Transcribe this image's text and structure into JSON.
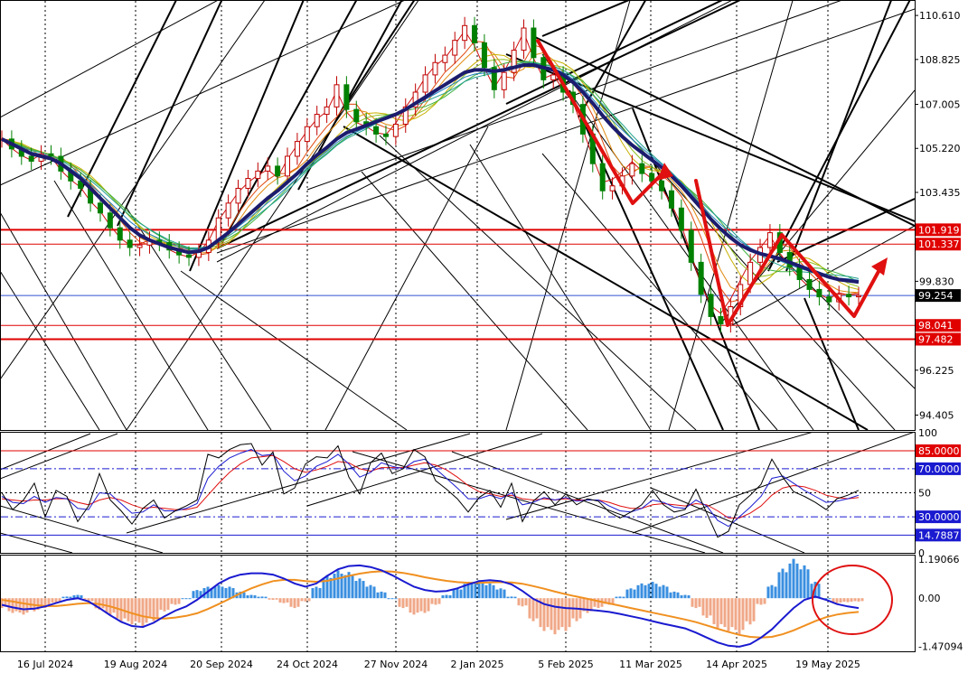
{
  "chart_data": {
    "type": "line",
    "x_labels": [
      "16 Jul 2024",
      "19 Aug 2024",
      "20 Sep 2024",
      "24 Oct 2024",
      "27 Nov 2024",
      "2 Jan 2025",
      "5 Feb 2025",
      "11 Mar 2025",
      "14 Apr 2025",
      "19 May 2025"
    ],
    "panels": [
      {
        "name": "price",
        "ylim": [
          93.8,
          111.2
        ],
        "ticks": [
          "110.610",
          "108.825",
          "107.005",
          "105.220",
          "103.435",
          "99.830",
          "96.225",
          "94.405"
        ],
        "tick_values": [
          110.61,
          108.825,
          107.005,
          105.22,
          103.435,
          99.83,
          96.225,
          94.405
        ],
        "levels": [
          {
            "label": "101.919",
            "value": 101.919,
            "color": "#e00000"
          },
          {
            "label": "101.337",
            "value": 101.337,
            "color": "#e00000"
          },
          {
            "label": "98.041",
            "value": 98.041,
            "color": "#e00000"
          },
          {
            "label": "97.482",
            "value": 97.482,
            "color": "#e00000"
          }
        ],
        "current": {
          "label": "99.254",
          "value": 99.254,
          "color": "#000000",
          "line_color": "#3050d0"
        },
        "close": [
          105.6,
          105.2,
          104.9,
          104.7,
          105.0,
          104.9,
          104.3,
          103.9,
          103.6,
          103.0,
          102.6,
          102.0,
          101.5,
          101.2,
          101.3,
          101.5,
          101.4,
          101.1,
          100.9,
          100.8,
          101.0,
          101.5,
          102.4,
          103.0,
          103.6,
          104.0,
          104.3,
          104.5,
          104.1,
          104.9,
          105.5,
          106.1,
          106.6,
          106.9,
          107.8,
          106.8,
          106.3,
          106.1,
          105.8,
          105.7,
          106.2,
          106.9,
          107.5,
          108.2,
          108.7,
          109.0,
          109.6,
          110.2,
          109.5,
          108.5,
          107.6,
          108.3,
          109.2,
          110.1,
          108.9,
          108.0,
          108.2,
          107.5,
          107.0,
          105.8,
          104.6,
          103.5,
          103.7,
          104.1,
          104.6,
          104.2,
          103.9,
          103.5,
          102.8,
          101.9,
          100.6,
          99.3,
          98.4,
          98.1,
          98.8,
          99.7,
          100.6,
          101.2,
          101.8,
          101.0,
          100.4,
          99.9,
          99.5,
          99.2,
          99.0,
          99.3,
          99.2,
          99.25
        ],
        "ma_slow": [
          105.6,
          105.4,
          105.2,
          105.0,
          104.9,
          104.8,
          104.6,
          104.3,
          104.0,
          103.6,
          103.2,
          102.8,
          102.4,
          102.0,
          101.7,
          101.5,
          101.35,
          101.2,
          101.1,
          101.0,
          101.05,
          101.2,
          101.5,
          101.8,
          102.15,
          102.5,
          102.85,
          103.2,
          103.5,
          103.85,
          104.2,
          104.6,
          104.95,
          105.25,
          105.6,
          105.85,
          106.0,
          106.15,
          106.3,
          106.45,
          106.6,
          106.8,
          107.05,
          107.3,
          107.55,
          107.8,
          108.05,
          108.3,
          108.4,
          108.4,
          108.35,
          108.4,
          108.5,
          108.6,
          108.6,
          108.5,
          108.4,
          108.2,
          107.9,
          107.5,
          107.05,
          106.55,
          106.1,
          105.7,
          105.35,
          105.05,
          104.75,
          104.45,
          104.1,
          103.7,
          103.25,
          102.8,
          102.35,
          101.95,
          101.6,
          101.3,
          101.1,
          100.95,
          100.85,
          100.75,
          100.6,
          100.45,
          100.3,
          100.15,
          100.0,
          99.9,
          99.85,
          99.8
        ]
      },
      {
        "name": "oscillator",
        "ylim": [
          0,
          100
        ],
        "ticks": [
          "100",
          "50",
          "0"
        ],
        "tick_values": [
          100,
          50,
          0
        ],
        "levels": [
          {
            "label": "85.0000",
            "value": 85,
            "color": "#e00000",
            "style": "solid"
          },
          {
            "label": "70.0000",
            "value": 70,
            "color": "#1a1ad0",
            "style": "dashdot"
          },
          {
            "label": "30.0000",
            "value": 30,
            "color": "#1a1ad0",
            "style": "dashdot"
          },
          {
            "label": "14.7887",
            "value": 14.7887,
            "color": "#1a1ad0",
            "style": "solid"
          }
        ],
        "mid": 50,
        "fast": [
          50,
          36,
          44,
          58,
          30,
          52,
          47,
          26,
          39,
          66,
          44,
          35,
          24,
          37,
          44,
          29,
          35,
          39,
          44,
          82,
          79,
          86,
          90,
          91,
          73,
          84,
          49,
          54,
          74,
          80,
          79,
          89,
          63,
          49,
          75,
          83,
          66,
          70,
          86,
          80,
          60,
          53,
          45,
          34,
          46,
          52,
          38,
          58,
          26,
          43,
          51,
          40,
          49,
          40,
          45,
          43,
          34,
          29,
          34,
          40,
          52,
          40,
          34,
          36,
          53,
          33,
          13,
          18,
          40,
          48,
          57,
          78,
          63,
          51,
          47,
          42,
          36,
          45,
          48,
          52
        ],
        "slow": [
          47,
          42,
          41,
          47,
          42,
          46,
          45,
          37,
          36,
          50,
          49,
          41,
          33,
          34,
          40,
          35,
          35,
          37,
          41,
          62,
          72,
          79,
          83,
          86,
          81,
          82,
          68,
          60,
          64,
          72,
          76,
          82,
          74,
          63,
          67,
          75,
          72,
          70,
          76,
          78,
          70,
          62,
          54,
          45,
          45,
          48,
          45,
          50,
          40,
          42,
          46,
          44,
          46,
          43,
          44,
          44,
          39,
          35,
          34,
          37,
          44,
          42,
          38,
          37,
          44,
          39,
          27,
          22,
          30,
          38,
          47,
          62,
          64,
          58,
          52,
          47,
          42,
          43,
          45,
          48
        ],
        "signal": [
          45,
          44,
          43,
          44,
          44,
          45,
          45,
          42,
          40,
          44,
          46,
          44,
          40,
          37,
          38,
          37,
          36,
          36,
          38,
          48,
          58,
          67,
          74,
          79,
          80,
          81,
          76,
          70,
          67,
          69,
          72,
          76,
          75,
          70,
          68,
          71,
          71,
          71,
          73,
          75,
          73,
          69,
          63,
          56,
          51,
          49,
          47,
          48,
          45,
          44,
          45,
          44,
          45,
          44,
          44,
          44,
          42,
          39,
          37,
          37,
          40,
          41,
          40,
          39,
          41,
          40,
          35,
          29,
          29,
          33,
          39,
          48,
          54,
          56,
          55,
          52,
          48,
          46,
          45,
          46
        ]
      },
      {
        "name": "macd",
        "ylim": [
          -1.62,
          1.3
        ],
        "ticks": [
          "1.19066",
          "0.00",
          "-1.47094"
        ],
        "tick_values": [
          1.19066,
          0,
          -1.47094
        ],
        "hist": [
          -0.3,
          -0.45,
          -0.5,
          -0.4,
          -0.3,
          -0.15,
          0.05,
          0.1,
          -0.1,
          -0.35,
          -0.5,
          -0.7,
          -0.8,
          -0.85,
          -0.7,
          -0.4,
          -0.2,
          0.0,
          0.25,
          0.35,
          0.4,
          0.35,
          0.2,
          0.1,
          0.05,
          -0.05,
          -0.15,
          -0.3,
          -0.1,
          0.35,
          0.7,
          0.85,
          0.8,
          0.6,
          0.4,
          0.2,
          0.0,
          -0.3,
          -0.5,
          -0.45,
          -0.2,
          0.1,
          0.3,
          0.5,
          0.55,
          0.45,
          0.3,
          0.05,
          -0.25,
          -0.7,
          -1.0,
          -1.1,
          -1.0,
          -0.7,
          -0.45,
          -0.3,
          -0.2,
          0.05,
          0.3,
          0.45,
          0.5,
          0.4,
          0.2,
          0.1,
          -0.3,
          -0.6,
          -0.9,
          -1.0,
          -1.1,
          -0.8,
          -0.2,
          0.4,
          0.9,
          1.2,
          1.0,
          0.5,
          0.0,
          -0.15,
          -0.12,
          -0.1
        ],
        "macd": [
          -0.2,
          -0.28,
          -0.34,
          -0.32,
          -0.25,
          -0.15,
          -0.05,
          0.0,
          -0.1,
          -0.3,
          -0.52,
          -0.72,
          -0.85,
          -0.88,
          -0.75,
          -0.55,
          -0.38,
          -0.25,
          -0.05,
          0.2,
          0.45,
          0.62,
          0.72,
          0.76,
          0.76,
          0.72,
          0.6,
          0.45,
          0.35,
          0.45,
          0.68,
          0.88,
          0.98,
          1.0,
          0.95,
          0.85,
          0.7,
          0.52,
          0.35,
          0.25,
          0.2,
          0.22,
          0.3,
          0.42,
          0.52,
          0.55,
          0.52,
          0.42,
          0.22,
          -0.02,
          -0.18,
          -0.26,
          -0.3,
          -0.32,
          -0.35,
          -0.38,
          -0.42,
          -0.48,
          -0.55,
          -0.62,
          -0.7,
          -0.78,
          -0.85,
          -0.92,
          -1.05,
          -1.2,
          -1.35,
          -1.45,
          -1.48,
          -1.4,
          -1.2,
          -0.95,
          -0.62,
          -0.3,
          -0.05,
          0.05,
          -0.05,
          -0.18,
          -0.25,
          -0.3
        ],
        "signal": [
          -0.05,
          -0.1,
          -0.16,
          -0.21,
          -0.24,
          -0.24,
          -0.21,
          -0.17,
          -0.15,
          -0.18,
          -0.25,
          -0.35,
          -0.46,
          -0.55,
          -0.61,
          -0.62,
          -0.59,
          -0.54,
          -0.46,
          -0.33,
          -0.18,
          -0.02,
          0.15,
          0.3,
          0.42,
          0.52,
          0.56,
          0.56,
          0.52,
          0.5,
          0.53,
          0.6,
          0.68,
          0.75,
          0.8,
          0.82,
          0.81,
          0.77,
          0.71,
          0.64,
          0.58,
          0.53,
          0.49,
          0.47,
          0.47,
          0.48,
          0.49,
          0.48,
          0.44,
          0.37,
          0.29,
          0.2,
          0.12,
          0.05,
          -0.02,
          -0.09,
          -0.16,
          -0.23,
          -0.3,
          -0.37,
          -0.44,
          -0.51,
          -0.58,
          -0.65,
          -0.73,
          -0.83,
          -0.93,
          -1.03,
          -1.12,
          -1.18,
          -1.2,
          -1.18,
          -1.1,
          -0.98,
          -0.84,
          -0.7,
          -0.58,
          -0.5,
          -0.45,
          -0.42
        ]
      }
    ]
  }
}
